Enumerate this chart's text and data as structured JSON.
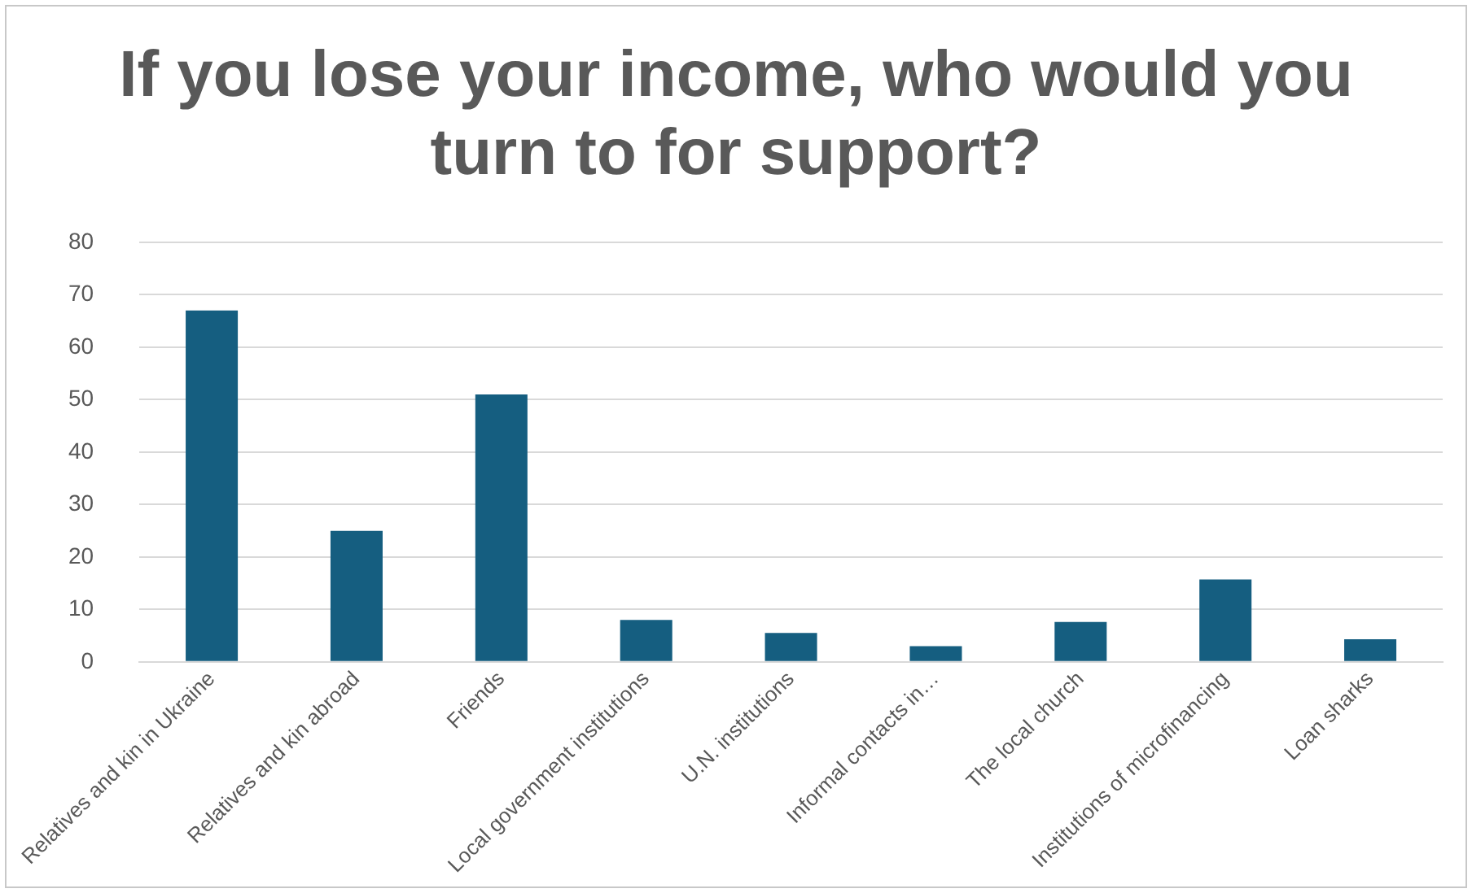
{
  "chart_data": {
    "type": "bar",
    "title": "If you lose your income, who would you turn to for support?",
    "categories": [
      "Relatives and kin in Ukraine",
      "Relatives and kin abroad",
      "Friends",
      "Local government institutions",
      "U.N. institutions",
      "Informal contacts in…",
      "The local church",
      "Institutions of microfinancing",
      "Loan sharks"
    ],
    "values": [
      67,
      25,
      51,
      8,
      5.5,
      3,
      7.6,
      15.7,
      4.3
    ],
    "color": "#155e80",
    "ylim": [
      0,
      80
    ],
    "yticks": [
      0,
      10,
      20,
      30,
      40,
      50,
      60,
      70,
      80
    ],
    "grid": "y",
    "legend": false
  }
}
